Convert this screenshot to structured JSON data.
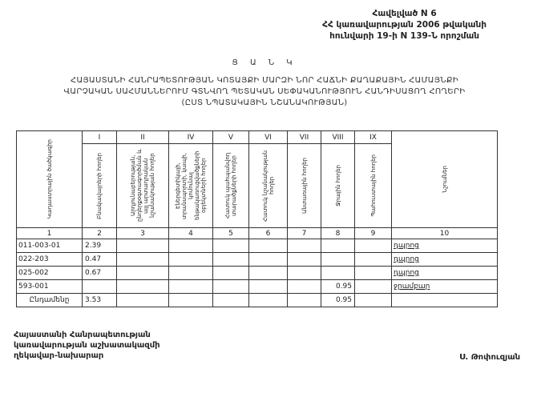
{
  "annex": {
    "line1": "Հավելված N 6",
    "line2": "ՀՀ կառավարության 2006 թվականի",
    "line3": "հունվարի 19-ի N 139-Ն որոշման"
  },
  "title": {
    "list_word": "Ց Ա Ն Կ",
    "line1": "ՀԱՅԱՍՏԱՆԻ ՀԱՆՐԱՊԵՏՈՒԹՅԱՆ ԿՈՏԱՅՔԻ ՄԱՐԶԻ ՆՈՐ ՀԱՃՆԻ ՔԱՂԱՔԱՅԻՆ ՀԱՄԱՅՆՔԻ",
    "line2": "ՎԱՐՉԱԿԱՆ ՍԱՀՄԱՆՆԵՐՈՒՄ ԳՏՆՎՈՂ ՊԵՏԱԿԱՆ ՍԵՓԱԿԱՆՈՒԹՅՈՒՆ ՀԱՆԴԻՍԱՑՈՂ ՀՈՂԵՐԻ",
    "line3": "(ԸՍՏ ՆՊԱՏԱԿԱՅԻՆ ՆՇԱՆԱԿՈՒԹՅԱՆ)"
  },
  "table": {
    "roman": [
      "I",
      "II",
      "IV",
      "V",
      "VI",
      "VII",
      "VIII",
      "IX"
    ],
    "headers": [
      "Կադաստրային ծածկագիր",
      "Բնակավայրերի հողեր",
      "Արդյունաբերության, ընդերքօգտագործման և այլ արտադրական նշանակության հողեր",
      "Էներգետիկայի, տրանսպորտի, կապի, կոմունալ ենթակառուցվածքների օբյեկտների հողեր",
      "Հատուկ պահպանվող տարածքների հողեր",
      "Հատուկ նշանակության հողեր",
      "Անտառային հողեր",
      "Ջրային հողեր",
      "Պահուստային հողեր",
      "Նշումներ"
    ],
    "col_numbers": [
      "1",
      "2",
      "3",
      "4",
      "5",
      "6",
      "7",
      "8",
      "9",
      "10"
    ],
    "rows": [
      {
        "code": "011-003-01",
        "c2": "2.39",
        "c8": "",
        "note": "դպրոց"
      },
      {
        "code": "022-203",
        "c2": "0.47",
        "c8": "",
        "note": "դպրոց"
      },
      {
        "code": "025-002",
        "c2": "0.67",
        "c8": "",
        "note": "դպրոց"
      },
      {
        "code": "593-001",
        "c2": "",
        "c8": "0.95",
        "note": "ջրամբար"
      }
    ],
    "total": {
      "label": "Ընդամենը",
      "c2": "3.53",
      "c8": "0.95"
    }
  },
  "footer": {
    "signer_line1": "Հայաստանի Հանրապետության",
    "signer_line2": "կառավարության աշխատակազմի",
    "signer_line3": "ղեկավար-նախարար",
    "signature_name": "Ս. Թոփուզյան"
  }
}
